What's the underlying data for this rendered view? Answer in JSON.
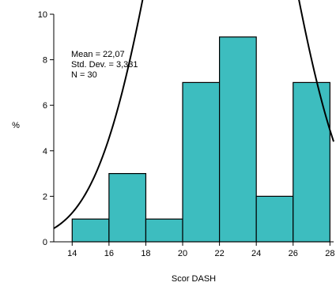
{
  "chart_data": {
    "type": "bar",
    "subtype": "histogram",
    "bins": [
      {
        "x0": 14,
        "x1": 16,
        "value": 1
      },
      {
        "x0": 16,
        "x1": 18,
        "value": 3
      },
      {
        "x0": 18,
        "x1": 20,
        "value": 1
      },
      {
        "x0": 20,
        "x1": 22,
        "value": 7
      },
      {
        "x0": 22,
        "x1": 24,
        "value": 9
      },
      {
        "x0": 24,
        "x1": 26,
        "value": 2
      },
      {
        "x0": 26,
        "x1": 28,
        "value": 7
      }
    ],
    "normal_curve": {
      "mean": 22.07,
      "sd": 3.331,
      "n": 30,
      "bin_width": 2
    },
    "xlabel": "Scor DASH",
    "ylabel": "%",
    "xlim": [
      13,
      28.2
    ],
    "ylim": [
      0,
      10
    ],
    "x_ticks": [
      "14",
      "16",
      "18",
      "20",
      "22",
      "24",
      "26",
      "28"
    ],
    "y_ticks": [
      "0",
      "2",
      "4",
      "6",
      "8",
      "10"
    ],
    "stats": [
      "Mean = 22,07",
      "Std. Dev. = 3,331",
      "N = 30"
    ],
    "colors": {
      "bar_fill": "#3dbdbf",
      "bar_stroke": "#000000",
      "curve": "#000000"
    },
    "grid": false,
    "legend": "none"
  }
}
